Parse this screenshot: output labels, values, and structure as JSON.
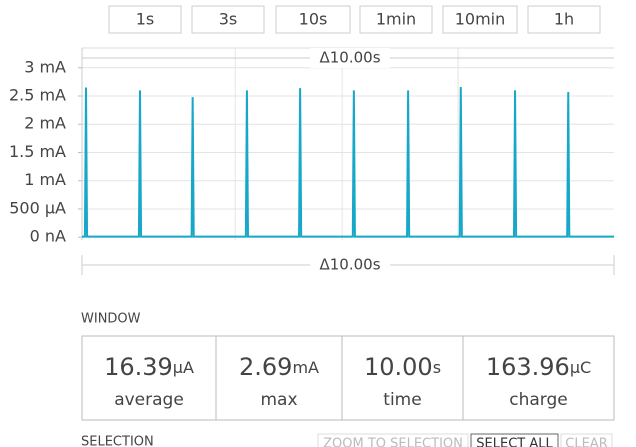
{
  "toolbar": {
    "buttons": [
      "1s",
      "3s",
      "10s",
      "1min",
      "10min",
      "1h"
    ]
  },
  "chart_data": {
    "type": "line",
    "window_label": "Δ10.00s",
    "selection_label": "Δ10.00s",
    "xlim": [
      0,
      10
    ],
    "xticks": [
      2.88,
      4.89,
      7.07
    ],
    "ylim": [
      -50,
      3350
    ],
    "yticks": [
      {
        "value": 0,
        "label": "0 nA"
      },
      {
        "value": 500,
        "label": "500 µA"
      },
      {
        "value": 1000,
        "label": "1 mA"
      },
      {
        "value": 1500,
        "label": "1.5 mA"
      },
      {
        "value": 2000,
        "label": "2 mA"
      },
      {
        "value": 2500,
        "label": "2.5 mA"
      },
      {
        "value": 3000,
        "label": "3 mA"
      }
    ],
    "grid": true,
    "series": [
      {
        "color": "#17a7c8",
        "x": [
          0,
          0.055,
          0.075,
          0.095,
          1.07,
          1.09,
          1.11,
          2.06,
          2.08,
          2.1,
          3.08,
          3.1,
          3.12,
          4.08,
          4.1,
          4.12,
          5.09,
          5.11,
          5.13,
          6.11,
          6.13,
          6.15,
          7.1,
          7.12,
          7.14,
          8.12,
          8.14,
          8.16,
          9.12,
          9.14,
          9.16,
          10
        ],
        "values": [
          10,
          10,
          2650,
          10,
          10,
          2600,
          10,
          10,
          2480,
          10,
          10,
          2600,
          10,
          10,
          2640,
          10,
          10,
          2600,
          10,
          10,
          2600,
          10,
          10,
          2660,
          10,
          10,
          2600,
          10,
          10,
          2570,
          10,
          10
        ]
      }
    ]
  },
  "window": {
    "title": "WINDOW",
    "stats": [
      {
        "value": "16.39",
        "unit": "μA",
        "label": "average"
      },
      {
        "value": "2.69",
        "unit": "mA",
        "label": "max"
      },
      {
        "value": "10.00",
        "unit": "s",
        "label": "time"
      },
      {
        "value": "163.96",
        "unit": "μC",
        "label": "charge"
      }
    ]
  },
  "selection": {
    "title": "SELECTION",
    "buttons": [
      "ZOOM TO SELECTION",
      "SELECT ALL",
      "CLEAR"
    ]
  }
}
